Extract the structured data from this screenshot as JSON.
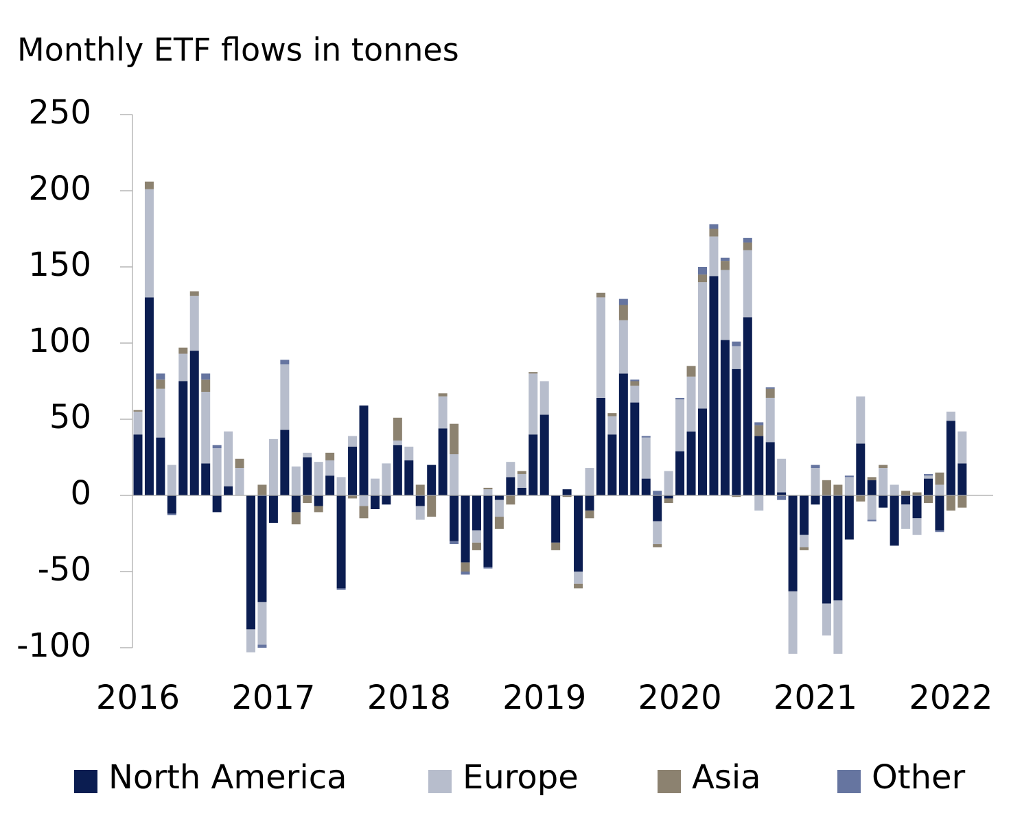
{
  "chart_data": {
    "type": "stacked_bar",
    "title": "Monthly ETF flows in tonnes",
    "categories": [
      "2016",
      null,
      null,
      null,
      null,
      null,
      null,
      null,
      null,
      null,
      null,
      null,
      "2017",
      null,
      null,
      null,
      null,
      null,
      null,
      null,
      null,
      null,
      null,
      null,
      "2018",
      null,
      null,
      null,
      null,
      null,
      null,
      null,
      null,
      null,
      null,
      null,
      "2019",
      null,
      null,
      null,
      null,
      null,
      null,
      null,
      null,
      null,
      null,
      null,
      "2020",
      null,
      null,
      null,
      null,
      null,
      null,
      null,
      null,
      null,
      null,
      null,
      "2021",
      null,
      null,
      null,
      null,
      null,
      null,
      null,
      null,
      null,
      null,
      null,
      "2022",
      null
    ],
    "series": [
      {
        "name": "North America",
        "color": "#0b1d51",
        "values": [
          40,
          130,
          38,
          -12,
          75,
          95,
          21,
          -11,
          6,
          0,
          -88,
          -70,
          -18,
          43,
          -11,
          25,
          -7,
          13,
          -61,
          32,
          59,
          -9,
          -6,
          33,
          23,
          -7,
          20,
          44,
          -30,
          -44,
          -23,
          -47,
          -3,
          12,
          5,
          40,
          53,
          -31,
          4,
          -50,
          -10,
          64,
          40,
          80,
          61,
          11,
          -17,
          -2,
          29,
          42,
          57,
          144,
          102,
          83,
          117,
          39,
          35,
          2,
          -63,
          -26,
          -6,
          -71,
          -69,
          -29,
          34,
          10,
          -8,
          -33,
          -6,
          -15,
          11,
          -23,
          49,
          21
        ]
      },
      {
        "name": "Europe",
        "color": "#b7bdcc",
        "values": [
          15,
          71,
          32,
          20,
          18,
          36,
          47,
          31,
          36,
          18,
          -15,
          -28,
          37,
          43,
          19,
          3,
          22,
          10,
          12,
          7,
          -7,
          11,
          21,
          3,
          9,
          -9,
          0,
          21,
          27,
          0,
          -8,
          4,
          -11,
          10,
          9,
          40,
          22,
          0,
          0,
          -8,
          18,
          66,
          12,
          35,
          11,
          27,
          -15,
          16,
          34,
          36,
          83,
          26,
          46,
          15,
          44,
          -10,
          29,
          22,
          -41,
          -8,
          18,
          -21,
          -35,
          12,
          31,
          -16,
          18,
          7,
          -16,
          -11,
          2,
          7,
          6,
          21
        ]
      },
      {
        "name": "Asia",
        "color": "#8c8270",
        "values": [
          1,
          5,
          6,
          0,
          4,
          3,
          8,
          0,
          0,
          6,
          0,
          7,
          0,
          0,
          -8,
          -5,
          -4,
          5,
          0,
          -2,
          -8,
          0,
          0,
          15,
          0,
          7,
          -14,
          2,
          20,
          -6,
          -5,
          1,
          -8,
          -6,
          2,
          1,
          0,
          -5,
          -1,
          -3,
          -5,
          3,
          2,
          10,
          3,
          0,
          -2,
          -3,
          0,
          7,
          5,
          5,
          6,
          -1,
          5,
          7,
          6,
          0,
          0,
          -2,
          0,
          10,
          7,
          0,
          -4,
          2,
          2,
          0,
          3,
          2,
          -5,
          8,
          -10,
          -8
        ]
      },
      {
        "name": "Other",
        "color": "#6675a0",
        "values": [
          0,
          0,
          4,
          -1,
          0,
          0,
          4,
          2,
          0,
          0,
          0,
          -2,
          0,
          3,
          0,
          0,
          0,
          0,
          -1,
          0,
          0,
          0,
          0,
          0,
          0,
          0,
          0,
          0,
          -2,
          -2,
          0,
          -1,
          0,
          0,
          0,
          0,
          0,
          0,
          0,
          0,
          0,
          0,
          0,
          4,
          1,
          1,
          3,
          0,
          1,
          0,
          5,
          3,
          2,
          3,
          3,
          2,
          1,
          -3,
          0,
          0,
          2,
          0,
          0,
          1,
          0,
          -1,
          0,
          0,
          0,
          0,
          1,
          -1,
          0,
          0
        ]
      }
    ],
    "ylim": [
      -100,
      250
    ],
    "yticks": [
      -100,
      -50,
      0,
      50,
      100,
      150,
      200,
      250
    ]
  }
}
